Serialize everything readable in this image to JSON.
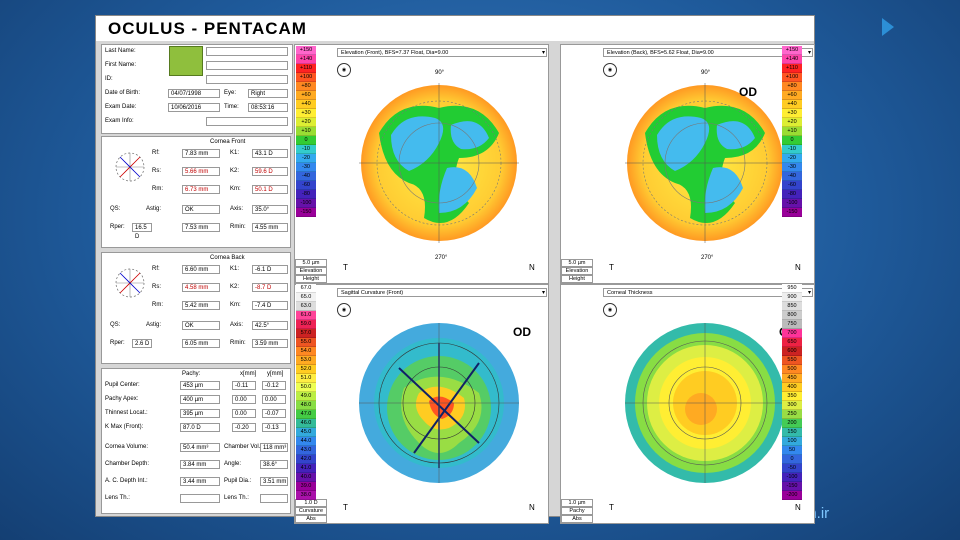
{
  "app": {
    "title": "OCULUS  -  PENTACAM"
  },
  "watermark": "an.ir",
  "patient": [
    {
      "label": "Last Name:",
      "value": ""
    },
    {
      "label": "First Name:",
      "value": ""
    },
    {
      "label": "ID:",
      "value": ""
    },
    {
      "label": "Date of Birth:",
      "value": "04/07/1998",
      "extra_label": "Eye:",
      "extra_value": "Right"
    },
    {
      "label": "Exam Date:",
      "value": "10/06/2016",
      "extra_label": "Time:",
      "extra_value": "08:53:16"
    },
    {
      "label": "Exam Info:",
      "value": ""
    }
  ],
  "cornea_front": {
    "title": "Cornea Front",
    "rows": [
      {
        "l1": "Rf:",
        "v1": "7.83 mm",
        "l2": "K1:",
        "v2": "43.1 D",
        "red": false
      },
      {
        "l1": "Rs:",
        "v1": "5.66 mm",
        "l2": "K2:",
        "v2": "59.6 D",
        "red": true
      },
      {
        "l1": "Rm:",
        "v1": "6.73 mm",
        "l2": "Km:",
        "v2": "50.1 D",
        "red": true
      },
      {
        "l1": "QS:",
        "v1": "OK",
        "l2": "Axis:",
        "v2": "35.0°",
        "red": false
      },
      {
        "l1": "Rper:",
        "v1": "7.53 mm",
        "l2": "Rmin:",
        "v2": "4.55 mm",
        "red": false
      }
    ],
    "astig_label": "Astig:",
    "astig": "16.5 D"
  },
  "cornea_back": {
    "title": "Cornea Back",
    "rows": [
      {
        "l1": "Rf:",
        "v1": "6.60 mm",
        "l2": "K1:",
        "v2": "-6.1 D",
        "red": false
      },
      {
        "l1": "Rs:",
        "v1": "4.58 mm",
        "l2": "K2:",
        "v2": "-8.7 D",
        "red": true
      },
      {
        "l1": "Rm:",
        "v1": "5.42 mm",
        "l2": "Km:",
        "v2": "-7.4 D",
        "red": false
      },
      {
        "l1": "QS:",
        "v1": "OK",
        "l2": "Axis:",
        "v2": "42.5°",
        "red": false
      },
      {
        "l1": "Rper:",
        "v1": "6.05 mm",
        "l2": "Rmin:",
        "v2": "3.59 mm",
        "red": false
      }
    ],
    "astig_label": "Astig:",
    "astig": "2.6 D"
  },
  "pachy": {
    "headers": [
      "Pachy:",
      "x[mm]",
      "y[mm]"
    ],
    "rows": [
      {
        "label": "Pupil Center:",
        "v": "453 µm",
        "x": "-0.11",
        "y": "-0.12"
      },
      {
        "label": "Pachy Apex:",
        "v": "400 µm",
        "x": "0.00",
        "y": "0.00"
      },
      {
        "label": "Thinnest Locat.:",
        "v": "395 µm",
        "x": "0.00",
        "y": "-0.07"
      },
      {
        "label": "K Max (Front):",
        "v": "87.0 D",
        "x": "-0.20",
        "y": "-0.13"
      }
    ],
    "extra": [
      {
        "l1": "Cornea Volume:",
        "v1": "50.4 mm³",
        "l2": "Chamber Vol.:",
        "v2": "118 mm³"
      },
      {
        "l1": "Chamber Depth:",
        "v1": "3.84 mm",
        "l2": "Angle:",
        "v2": "38.6°"
      },
      {
        "l1": "A. C. Depth Int.:",
        "v1": "3.44 mm",
        "l2": "Pupil Dia.:",
        "v2": "3.51 mm"
      },
      {
        "l1": "Lens Th.:",
        "v1": "",
        "l2": "Lens Th.:",
        "v2": ""
      }
    ]
  },
  "maps": [
    {
      "name": "elevation-front",
      "selector": "Elevation (Front), BFS=7.37 Float, Dia=9.00",
      "od": "",
      "unit_top": "5.0 µm",
      "unit_mid": "Elevation",
      "unit_bot": "Height",
      "deg_top": "90°",
      "deg_bot": "270°",
      "left": "T",
      "right": "N"
    },
    {
      "name": "elevation-back",
      "selector": "Elevation (Back), BFS=5.62 Float, Dia=9.00",
      "od": "OD",
      "unit_top": "5.0 µm",
      "unit_mid": "Elevation",
      "unit_bot": "Height",
      "deg_top": "90°",
      "deg_bot": "270°",
      "left": "T",
      "right": "N"
    },
    {
      "name": "sagittal-curvature",
      "selector": "Sagittal Curvature (Front)",
      "od": "OD",
      "unit_top": "1.0 D",
      "unit_mid": "Curvature",
      "unit_bot": "Abs",
      "deg_top": "",
      "deg_bot": "",
      "left": "T",
      "right": "N"
    },
    {
      "name": "corneal-thickness",
      "selector": "Corneal Thickness",
      "od": "OD",
      "unit_top": "1.0 µm",
      "unit_mid": "Pachy",
      "unit_bot": "Abs",
      "deg_top": "",
      "deg_bot": "",
      "left": "T",
      "right": "N"
    }
  ],
  "scales": {
    "elevation": [
      "+150",
      "+140",
      "+110",
      "+100",
      "+80",
      "+60",
      "+40",
      "+30",
      "+20",
      "+10",
      "0",
      "-10",
      "-20",
      "-30",
      "-40",
      "-60",
      "-80",
      "-100",
      "-150"
    ],
    "curvature": [
      "67.0",
      "65.0",
      "63.0",
      "61.0",
      "59.0",
      "57.0",
      "55.0",
      "54.0",
      "53.0",
      "52.0",
      "51.0",
      "50.0",
      "49.0",
      "48.0",
      "47.0",
      "46.0",
      "45.0",
      "44.0",
      "43.0",
      "42.0",
      "41.0",
      "40.0",
      "39.0",
      "38.0"
    ],
    "thickness": [
      "950",
      "900",
      "850",
      "800",
      "750",
      "700",
      "650",
      "600",
      "550",
      "500",
      "450",
      "400",
      "350",
      "300",
      "250",
      "200",
      "150",
      "100",
      "50",
      "0",
      "-50",
      "-100",
      "-150",
      "-200"
    ]
  }
}
